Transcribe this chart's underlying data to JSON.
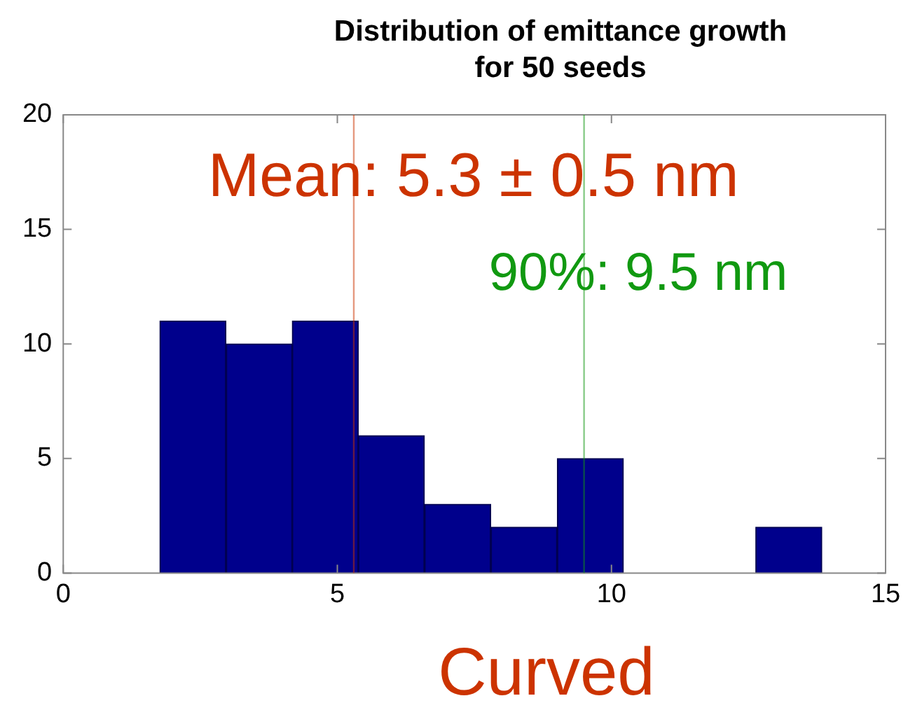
{
  "chart_data": {
    "type": "histogram",
    "title": "Distribution of emittance growth for 50 seeds",
    "bins": [
      1.76,
      2.97,
      4.18,
      5.38,
      6.59,
      7.8,
      9.01,
      10.22,
      11.43,
      12.63,
      13.84
    ],
    "values": [
      11,
      10,
      11,
      6,
      3,
      2,
      5,
      0,
      0,
      2
    ],
    "color": "#00008c",
    "xlim": [
      0,
      15
    ],
    "xticks": [
      0,
      5,
      10,
      15
    ],
    "ylim": [
      0,
      20
    ],
    "yticks": [
      0,
      5,
      10,
      15,
      20
    ],
    "grid": false,
    "legend": false,
    "ref_lines": [
      {
        "axis": "x",
        "value": 5.3,
        "label": "Mean: 5.3 ± 0.5 nm",
        "color": "#cc3300"
      },
      {
        "axis": "x",
        "value": 9.5,
        "label": "90%: 9.5 nm",
        "color": "#119911"
      }
    ],
    "annotations": [
      "Curved"
    ]
  }
}
